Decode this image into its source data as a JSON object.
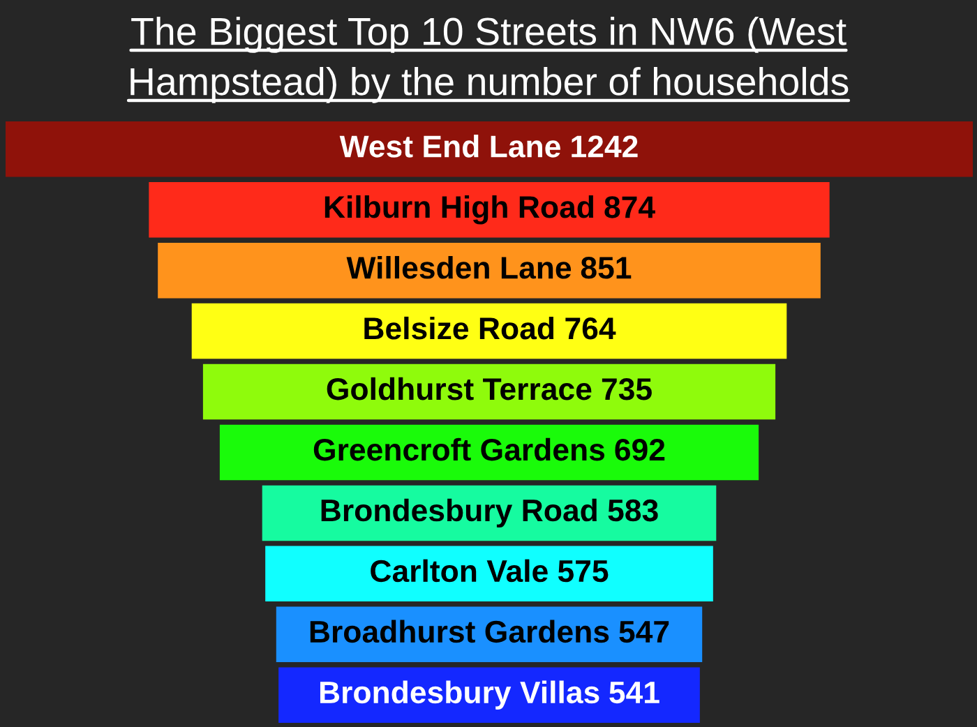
{
  "chart_data": {
    "type": "other",
    "title": "The Biggest Top 10 Streets in NW6 (West Hampstead) by the number of households",
    "categories": [
      "West End Lane",
      "Kilburn High Road",
      "Willesden Lane",
      "Belsize Road",
      "Goldhurst Terrace",
      "Greencroft Gardens",
      "Brondesbury Road",
      "Carlton Vale",
      "Broadhurst Gardens",
      "Brondesbury Villas"
    ],
    "values": [
      1242,
      874,
      851,
      764,
      735,
      692,
      583,
      575,
      547,
      541
    ],
    "colors": [
      "#8f120a",
      "#ff2a1a",
      "#ff931c",
      "#ffff14",
      "#8ffb0c",
      "#1afb0a",
      "#16fba0",
      "#10ffff",
      "#1a90ff",
      "#1428ff"
    ],
    "data_labels": true
  }
}
